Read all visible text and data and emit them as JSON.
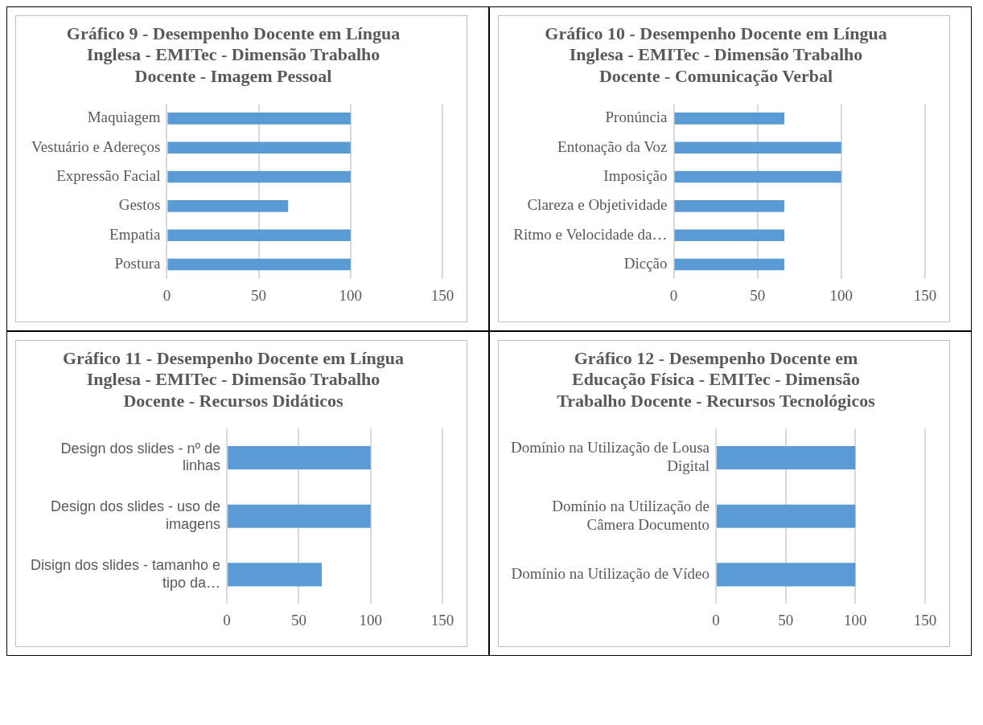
{
  "chart_data": [
    {
      "type": "bar",
      "orientation": "horizontal",
      "title": "Gráfico 9 - Desempenho Docente em Língua Inglesa - EMITec - Dimensão Trabalho Docente - Imagem Pessoal",
      "categories": [
        "Maquiagem",
        "Vestuário e Adereços",
        "Expressão Facial",
        "Gestos",
        "Empatia",
        "Postura"
      ],
      "values": [
        100,
        100,
        100,
        66,
        100,
        100
      ],
      "color": "#5b9bd5",
      "xlim": [
        0,
        150
      ],
      "xticks": [
        0,
        50,
        100,
        150
      ],
      "grid": "x"
    },
    {
      "type": "bar",
      "orientation": "horizontal",
      "title": "Gráfico 10 - Desempenho Docente em Língua Inglesa - EMITec - Dimensão Trabalho Docente - Comunicação Verbal",
      "categories": [
        "Pronúncia",
        "Entonação da Voz",
        "Imposição",
        "Clareza e Objetividade",
        "Ritmo e Velocidade da…",
        "Dicção"
      ],
      "values": [
        66,
        100,
        100,
        66,
        66,
        66
      ],
      "color": "#5b9bd5",
      "xlim": [
        0,
        150
      ],
      "xticks": [
        0,
        50,
        100,
        150
      ],
      "grid": "x"
    },
    {
      "type": "bar",
      "orientation": "horizontal",
      "title": "Gráfico 11 - Desempenho Docente em Língua Inglesa - EMITec - Dimensão Trabalho Docente - Recursos Didáticos",
      "categories": [
        "Design dos slides - nº de linhas",
        "Design dos slides - uso de imagens",
        "Disign dos slides - tamanho e tipo da…"
      ],
      "values": [
        100,
        100,
        66
      ],
      "color": "#5b9bd5",
      "xlim": [
        0,
        150
      ],
      "xticks": [
        0,
        50,
        100,
        150
      ],
      "grid": "x"
    },
    {
      "type": "bar",
      "orientation": "horizontal",
      "title": "Gráfico 12 - Desempenho Docente em Educação Física - EMITec - Dimensão Trabalho Docente - Recursos Tecnológicos",
      "categories": [
        "Domínio na Utilização de Lousa Digital",
        "Domínio na Utilização de Câmera Documento",
        "Domínio na Utilização de Vídeo"
      ],
      "values": [
        100,
        100,
        100
      ],
      "color": "#5b9bd5",
      "xlim": [
        0,
        150
      ],
      "xticks": [
        0,
        50,
        100,
        150
      ],
      "grid": "x"
    }
  ]
}
